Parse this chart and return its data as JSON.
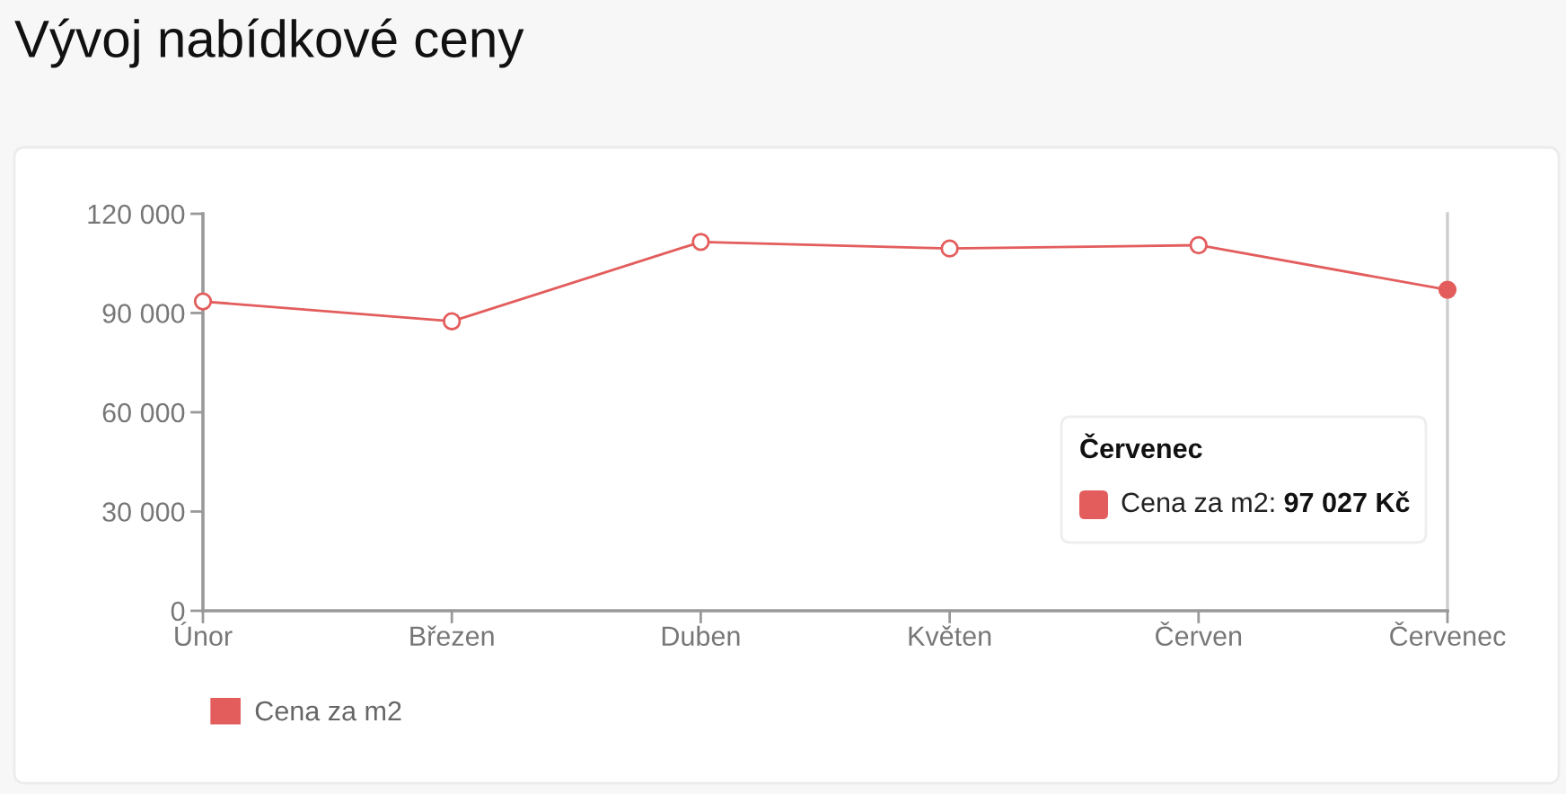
{
  "chart_data": {
    "type": "line",
    "title": "Vývoj nabídkové ceny",
    "categories": [
      "Únor",
      "Březen",
      "Duben",
      "Květen",
      "Červen",
      "Červenec"
    ],
    "series": [
      {
        "name": "Cena za m2",
        "color": "#e35d5d",
        "values": [
          93500,
          87500,
          111500,
          109500,
          110500,
          97027
        ]
      }
    ],
    "ylim": [
      0,
      120000
    ],
    "yticks": [
      0,
      {
        "value": 30000,
        "label": "30 000"
      },
      {
        "value": 60000,
        "label": "60 000"
      },
      {
        "value": 90000,
        "label": "90 000"
      },
      {
        "value": 120000,
        "label": "120 000"
      }
    ],
    "marker": "circle",
    "legend": "bottom left",
    "ref_lines": [
      {
        "axis": "x",
        "value": "Červenec",
        "color": "#cccccc"
      }
    ],
    "annotations": [
      "Červenec",
      "Cena za m2:",
      "97 027 Kč"
    ]
  }
}
